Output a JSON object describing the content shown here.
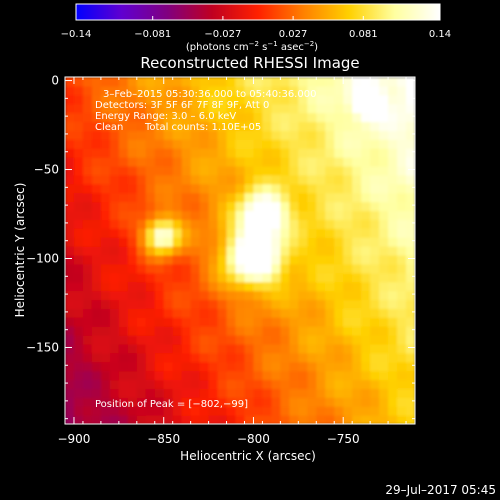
{
  "chart_data": {
    "type": "heatmap",
    "title": "Reconstructed RHESSI Image",
    "xlabel": "Heliocentric X (arcsec)",
    "ylabel": "Heliocentric Y (arcsec)",
    "xlim": [
      -905,
      -710
    ],
    "ylim": [
      -193,
      2
    ],
    "x_ticks": [
      -900,
      -850,
      -800,
      -750
    ],
    "x_tick_labels": [
      "−900",
      "−850",
      "−800",
      "−750"
    ],
    "y_ticks": [
      0,
      -50,
      -100,
      -150
    ],
    "y_tick_labels": [
      "0",
      "−50",
      "−100",
      "−150"
    ],
    "colorbar": {
      "min": -0.14,
      "max": 0.14,
      "ticks": [
        -0.14,
        -0.081,
        -0.027,
        0.027,
        0.081,
        0.14
      ],
      "tick_labels": [
        "−0.14",
        "−0.081",
        "−0.027",
        "0.027",
        "0.081",
        "0.14"
      ],
      "unit_label": "(photons cm",
      "unit_sup1": "−2",
      "unit_mid": " s",
      "unit_sup2": "−1",
      "unit_mid2": " asec",
      "unit_sup3": "−2",
      "unit_end": ")"
    },
    "sources": [
      {
        "x": -800,
        "y": -99,
        "peak": 0.14,
        "sigma": 11
      },
      {
        "x": -795,
        "y": -75,
        "peak": 0.11,
        "sigma": 9
      },
      {
        "x": -851,
        "y": -87,
        "peak": 0.12,
        "sigma": 7
      },
      {
        "x": -737,
        "y": -12,
        "peak": 0.07,
        "sigma": 6
      }
    ],
    "peak_position": [
      -802,
      -99
    ],
    "annotations": {
      "time_range": "3–Feb–2015 05:30:36.000 to 05:40:36.000",
      "detectors": "Detectors: 3F 5F 6F 7F 8F 9F, Att 0",
      "energy_range": "Energy Range: 3.0 – 6.0 keV",
      "method": "Clean",
      "total_counts": "Total counts: 1.10E+05",
      "peak_text": "Position of Peak = [−802,−99]"
    },
    "footer_date": "29–Jul–2017 05:45",
    "colormap": [
      "#0000ff",
      "#6000d0",
      "#800080",
      "#c00020",
      "#ff2000",
      "#ff8000",
      "#ffd000",
      "#ffffa0",
      "#ffffff"
    ]
  }
}
